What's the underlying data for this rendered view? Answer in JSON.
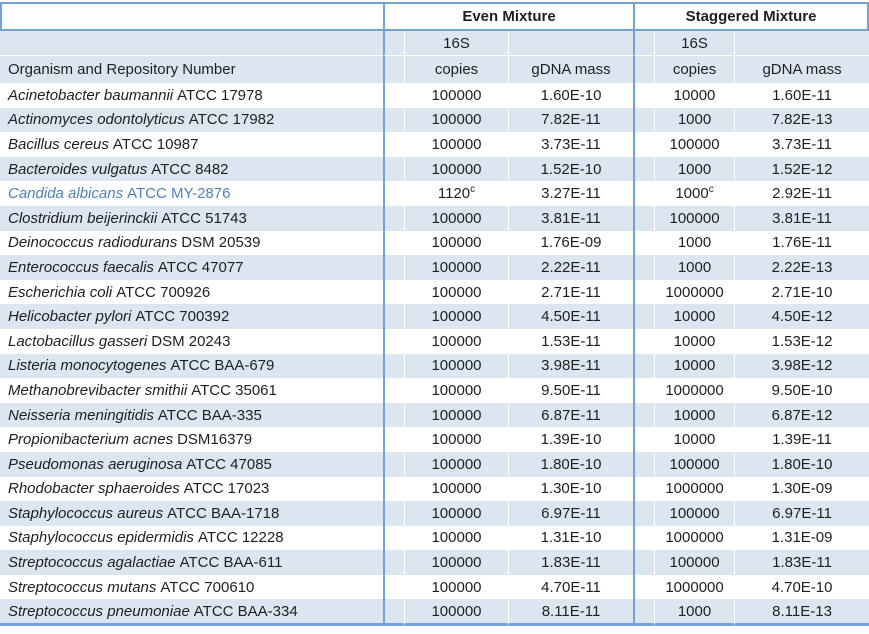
{
  "colors": {
    "border_blue": "#74a2d4",
    "stripe_blue": "#dce6f1",
    "text": "#1f1f1f",
    "highlight_text_blue": "#4f81bd"
  },
  "table": {
    "groups": [
      {
        "label": "Even Mixture"
      },
      {
        "label": "Staggered Mixture"
      }
    ],
    "organism_header": "Organism and Repository Number",
    "subheader": {
      "line1": "16S",
      "line2": "copies",
      "gdna": "gDNA mass"
    },
    "rows": [
      {
        "species": "Acinetobacter baumannii",
        "strain": "ATCC 17978",
        "e_copies": "100000",
        "e_gdna": "1.60E-10",
        "s_copies": "10000",
        "s_gdna": "1.60E-11"
      },
      {
        "species": "Actinomyces odontolyticus",
        "strain": "ATCC 17982",
        "e_copies": "100000",
        "e_gdna": "7.82E-11",
        "s_copies": "1000",
        "s_gdna": "7.82E-13"
      },
      {
        "species": "Bacillus cereus",
        "strain": "ATCC 10987",
        "e_copies": "100000",
        "e_gdna": "3.73E-11",
        "s_copies": "100000",
        "s_gdna": "3.73E-11"
      },
      {
        "species": "Bacteroides vulgatus",
        "strain": "ATCC 8482",
        "e_copies": "100000",
        "e_gdna": "1.52E-10",
        "s_copies": "1000",
        "s_gdna": "1.52E-12"
      },
      {
        "species": "Candida albicans",
        "strain": "ATCC MY-2876",
        "highlight": true,
        "e_copies": "1120",
        "e_copies_sup": "c",
        "e_gdna": "3.27E-11",
        "s_copies": "1000",
        "s_copies_sup": "c",
        "s_gdna": "2.92E-11"
      },
      {
        "species": "Clostridium beijerinckii",
        "strain": "ATCC 51743",
        "e_copies": "100000",
        "e_gdna": "3.81E-11",
        "s_copies": "100000",
        "s_gdna": "3.81E-11"
      },
      {
        "species": "Deinococcus radiodurans",
        "strain": "DSM 20539",
        "e_copies": "100000",
        "e_gdna": "1.76E-09",
        "s_copies": "1000",
        "s_gdna": "1.76E-11"
      },
      {
        "species": "Enterococcus faecalis",
        "strain": "ATCC 47077",
        "e_copies": "100000",
        "e_gdna": "2.22E-11",
        "s_copies": "1000",
        "s_gdna": "2.22E-13"
      },
      {
        "species": "Escherichia coli",
        "strain": "ATCC 700926",
        "e_copies": "100000",
        "e_gdna": "2.71E-11",
        "s_copies": "1000000",
        "s_gdna": "2.71E-10"
      },
      {
        "species": "Helicobacter pylori",
        "strain": "ATCC 700392",
        "e_copies": "100000",
        "e_gdna": "4.50E-11",
        "s_copies": "10000",
        "s_gdna": "4.50E-12"
      },
      {
        "species": "Lactobacillus gasseri",
        "strain": "DSM 20243",
        "e_copies": "100000",
        "e_gdna": "1.53E-11",
        "s_copies": "10000",
        "s_gdna": "1.53E-12"
      },
      {
        "species": "Listeria monocytogenes",
        "strain": "ATCC BAA-679",
        "e_copies": "100000",
        "e_gdna": "3.98E-11",
        "s_copies": "10000",
        "s_gdna": "3.98E-12"
      },
      {
        "species": "Methanobrevibacter smithii",
        "strain": "ATCC 35061",
        "e_copies": "100000",
        "e_gdna": "9.50E-11",
        "s_copies": "1000000",
        "s_gdna": "9.50E-10"
      },
      {
        "species": "Neisseria meningitidis",
        "strain": "ATCC BAA-335",
        "e_copies": "100000",
        "e_gdna": "6.87E-11",
        "s_copies": "10000",
        "s_gdna": "6.87E-12"
      },
      {
        "species": "Propionibacterium acnes",
        "strain": "DSM16379",
        "e_copies": "100000",
        "e_gdna": "1.39E-10",
        "s_copies": "10000",
        "s_gdna": "1.39E-11"
      },
      {
        "species": "Pseudomonas aeruginosa",
        "strain": "ATCC 47085",
        "e_copies": "100000",
        "e_gdna": "1.80E-10",
        "s_copies": "100000",
        "s_gdna": "1.80E-10"
      },
      {
        "species": "Rhodobacter sphaeroides",
        "strain": "ATCC 17023",
        "e_copies": "100000",
        "e_gdna": "1.30E-10",
        "s_copies": "1000000",
        "s_gdna": "1.30E-09"
      },
      {
        "species": "Staphylococcus aureus",
        "strain": "ATCC BAA-1718",
        "e_copies": "100000",
        "e_gdna": "6.97E-11",
        "s_copies": "100000",
        "s_gdna": "6.97E-11"
      },
      {
        "species": "Staphylococcus epidermidis",
        "strain": "ATCC 12228",
        "e_copies": "100000",
        "e_gdna": "1.31E-10",
        "s_copies": "1000000",
        "s_gdna": "1.31E-09"
      },
      {
        "species": "Streptococcus agalactiae",
        "strain": "ATCC BAA-611",
        "e_copies": "100000",
        "e_gdna": "1.83E-11",
        "s_copies": "100000",
        "s_gdna": "1.83E-11"
      },
      {
        "species": "Streptococcus mutans",
        "strain": "ATCC 700610",
        "e_copies": "100000",
        "e_gdna": "4.70E-11",
        "s_copies": "1000000",
        "s_gdna": "4.70E-10"
      },
      {
        "species": "Streptococcus pneumoniae",
        "strain": "ATCC BAA-334",
        "e_copies": "100000",
        "e_gdna": "8.11E-11",
        "s_copies": "1000",
        "s_gdna": "8.11E-13"
      }
    ]
  }
}
